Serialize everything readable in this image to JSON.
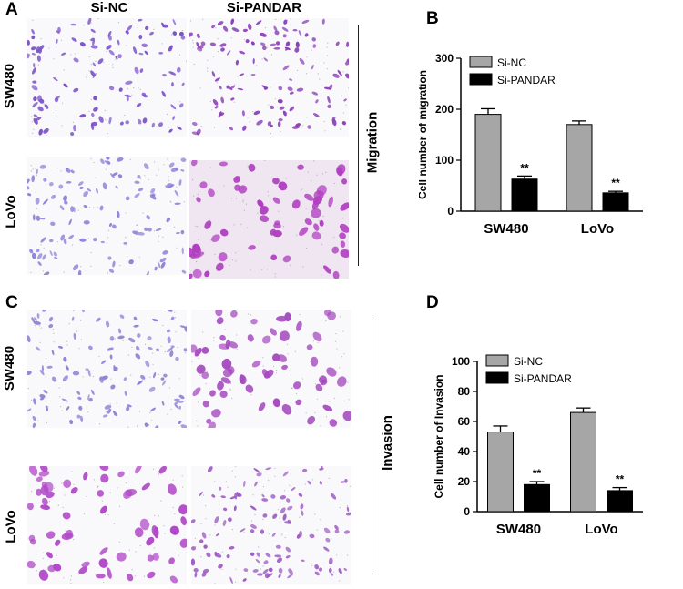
{
  "panels": {
    "a": "A",
    "b": "B",
    "c": "C",
    "d": "D"
  },
  "columns": {
    "left": "Si-NC",
    "right": "Si-PANDAR"
  },
  "rows": {
    "top": "SW480",
    "bottom": "LoVo"
  },
  "sides": {
    "migration": "Migration",
    "invasion": "Invasion"
  },
  "micrographs": [
    {
      "assay": "Migration",
      "row": "SW480",
      "group": "Si-NC",
      "cell_color": "#7b52c9",
      "cell_size": "small"
    },
    {
      "assay": "Migration",
      "row": "SW480",
      "group": "Si-PANDAR",
      "cell_color": "#8a3fb7",
      "cell_size": "small"
    },
    {
      "assay": "Migration",
      "row": "LoVo",
      "group": "Si-NC",
      "cell_color": "#8e84d9",
      "cell_size": "small"
    },
    {
      "assay": "Migration",
      "row": "LoVo",
      "group": "Si-PANDAR",
      "cell_color": "#b040c0",
      "cell_size": "large"
    },
    {
      "assay": "Invasion",
      "row": "SW480",
      "group": "Si-NC",
      "cell_color": "#8e82d6",
      "cell_size": "small"
    },
    {
      "assay": "Invasion",
      "row": "SW480",
      "group": "Si-PANDAR",
      "cell_color": "#a54bbf",
      "cell_size": "large"
    },
    {
      "assay": "Invasion",
      "row": "LoVo",
      "group": "Si-NC",
      "cell_color": "#b048c7",
      "cell_size": "large"
    },
    {
      "assay": "Invasion",
      "row": "LoVo",
      "group": "Si-PANDAR",
      "cell_color": "#9e5cc4",
      "cell_size": "small"
    }
  ],
  "chart_data": [
    {
      "type": "bar",
      "panel": "B",
      "title": "",
      "xlabel": "",
      "ylabel": "Cell number of migration",
      "categories": [
        "SW480",
        "LoVo"
      ],
      "series": [
        {
          "name": "Si-NC",
          "values": [
            190,
            170
          ],
          "errors": [
            11,
            7
          ],
          "color": "#a6a6a6"
        },
        {
          "name": "Si-PANDAR",
          "values": [
            63,
            36
          ],
          "errors": [
            6,
            3
          ],
          "color": "#000000"
        }
      ],
      "significance": [
        "**",
        "**"
      ],
      "ylim": [
        0,
        300
      ],
      "yticks": [
        0,
        100,
        200,
        300
      ],
      "legend": "top-left"
    },
    {
      "type": "bar",
      "panel": "D",
      "title": "",
      "xlabel": "",
      "ylabel": "Cell number of Invasion",
      "categories": [
        "SW480",
        "LoVo"
      ],
      "series": [
        {
          "name": "Si-NC",
          "values": [
            53,
            66
          ],
          "errors": [
            4,
            3
          ],
          "color": "#a6a6a6"
        },
        {
          "name": "Si-PANDAR",
          "values": [
            18,
            14
          ],
          "errors": [
            2,
            2
          ],
          "color": "#000000"
        }
      ],
      "significance": [
        "**",
        "**"
      ],
      "ylim": [
        0,
        100
      ],
      "yticks": [
        0,
        20,
        40,
        60,
        80,
        100
      ],
      "legend": "top-left"
    }
  ]
}
